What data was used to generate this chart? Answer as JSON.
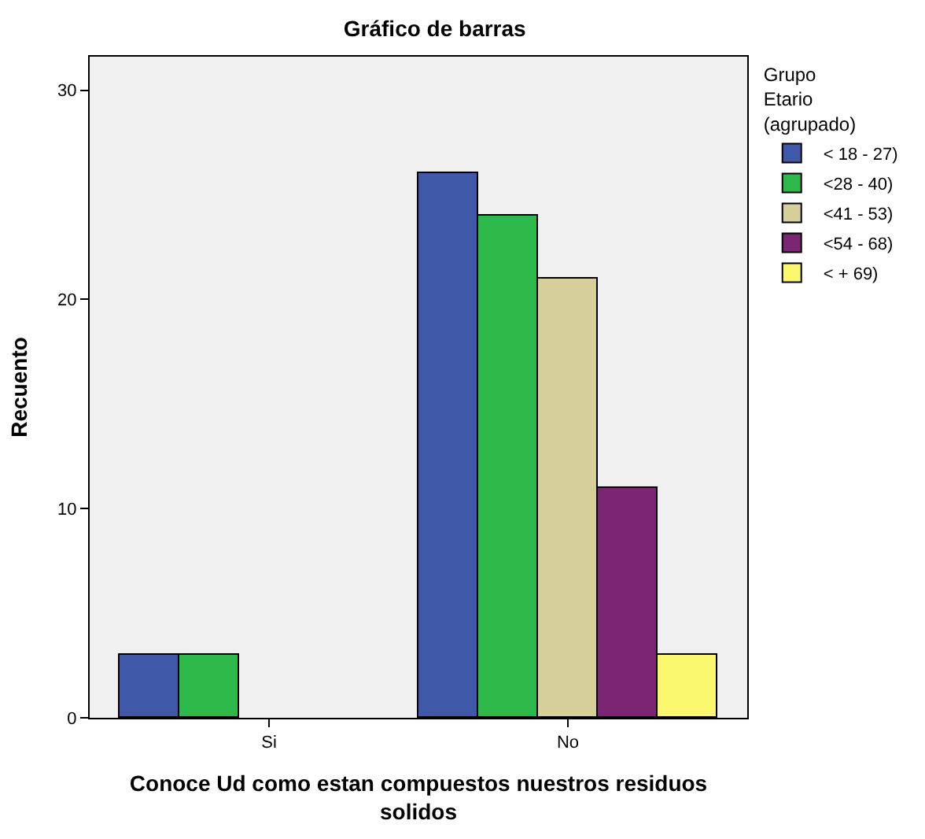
{
  "chart_data": {
    "type": "bar",
    "title": "Gráfico de barras",
    "xlabel": "Conoce Ud como estan compuestos nuestros residuos solidos",
    "ylabel": "Recuento",
    "legend_title": "Grupo Etario (agrupado)",
    "categories": [
      "Si",
      "No"
    ],
    "series": [
      {
        "name": "< 18 - 27)",
        "color": "#3f58a8",
        "values": [
          3,
          26
        ]
      },
      {
        "name": "<28 - 40)",
        "color": "#2db84a",
        "values": [
          3,
          24
        ]
      },
      {
        "name": "<41 - 53)",
        "color": "#d6cf9a",
        "values": [
          null,
          21
        ]
      },
      {
        "name": "<54 - 68)",
        "color": "#7b2574",
        "values": [
          null,
          11
        ]
      },
      {
        "name": "< + 69)",
        "color": "#fbf870",
        "values": [
          null,
          3
        ]
      }
    ],
    "ylim": [
      0,
      31.6
    ],
    "yticks": [
      0,
      10,
      20,
      30
    ],
    "grid": false,
    "legend": "right"
  }
}
